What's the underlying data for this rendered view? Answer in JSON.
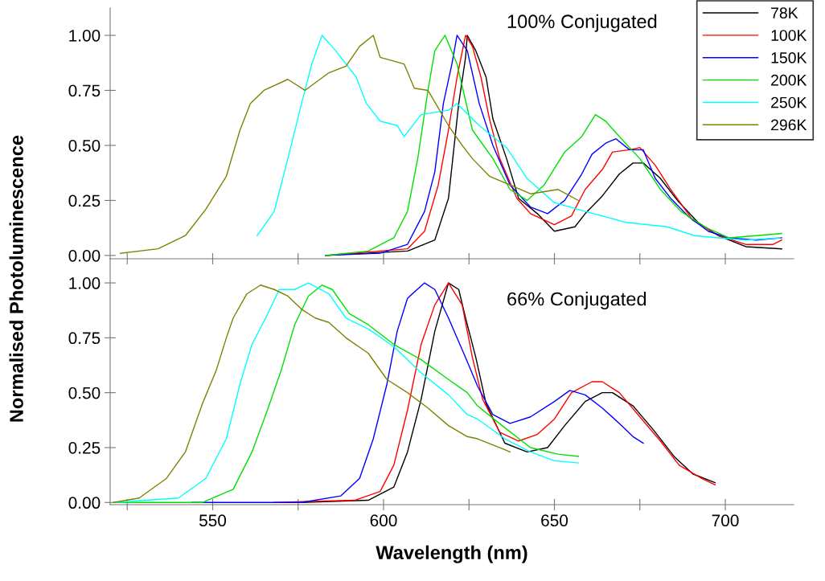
{
  "chart_data": [
    {
      "type": "line",
      "ylabel": "Normalised Photoluminescence",
      "annotations": [
        "100% Conjugated"
      ],
      "xlim": [
        520,
        720
      ],
      "ylim": [
        -0.015,
        1.124
      ],
      "xticks": [
        {
          "value": 525,
          "label": null
        },
        {
          "value": 550,
          "label": null
        },
        {
          "value": 575,
          "label": null
        },
        {
          "value": 600,
          "label": null
        },
        {
          "value": 625,
          "label": null
        },
        {
          "value": 650,
          "label": null
        },
        {
          "value": 675,
          "label": null
        },
        {
          "value": 700,
          "label": null
        }
      ],
      "yticks": [
        {
          "value": 0,
          "label": "0.00"
        },
        {
          "value": 0.25,
          "label": "0.25"
        },
        {
          "value": 0.5,
          "label": "0.50"
        },
        {
          "value": 0.75,
          "label": "0.75"
        },
        {
          "value": 1,
          "label": "1.00"
        }
      ],
      "tick_labels": "y",
      "legend": "top right",
      "grid": false,
      "marker": "none",
      "line_style": "solid",
      "series": [
        {
          "name": "78K",
          "color": "#000000",
          "x": [
            583,
            607,
            615,
            619,
            622,
            624,
            624.5,
            627,
            630,
            632,
            636,
            639.5,
            645,
            650,
            656,
            659,
            664,
            669,
            673,
            676,
            681,
            686,
            692,
            698,
            706,
            716.5
          ],
          "values": [
            0,
            0.02,
            0.07,
            0.26,
            0.69,
            0.9,
            1.0,
            0.93,
            0.81,
            0.62,
            0.44,
            0.26,
            0.19,
            0.11,
            0.13,
            0.19,
            0.27,
            0.37,
            0.42,
            0.42,
            0.35,
            0.25,
            0.15,
            0.09,
            0.04,
            0.03
          ]
        },
        {
          "name": "100K",
          "color": "#ff0000",
          "x": [
            583,
            607,
            612,
            616,
            619,
            621.5,
            624,
            626,
            628.5,
            631,
            634,
            639,
            643,
            650,
            655,
            659,
            664,
            667,
            672,
            675,
            679.5,
            684,
            690.5,
            698,
            706,
            714,
            716.5
          ],
          "values": [
            0,
            0.03,
            0.11,
            0.32,
            0.57,
            0.81,
            1.0,
            0.95,
            0.81,
            0.62,
            0.44,
            0.26,
            0.19,
            0.14,
            0.18,
            0.3,
            0.39,
            0.47,
            0.48,
            0.49,
            0.41,
            0.3,
            0.16,
            0.09,
            0.05,
            0.05,
            0.07
          ]
        },
        {
          "name": "150K",
          "color": "#0000ff",
          "x": [
            583,
            599,
            607,
            612,
            615,
            617.5,
            620,
            621.5,
            624.5,
            628,
            632,
            637,
            643,
            648,
            653,
            658,
            661,
            665,
            668,
            672,
            676,
            679.5,
            684,
            689,
            695,
            701,
            709,
            716.5
          ],
          "values": [
            0,
            0.01,
            0.05,
            0.2,
            0.38,
            0.69,
            0.87,
            1.0,
            0.93,
            0.69,
            0.5,
            0.32,
            0.22,
            0.19,
            0.25,
            0.37,
            0.46,
            0.51,
            0.53,
            0.48,
            0.48,
            0.35,
            0.26,
            0.18,
            0.11,
            0.08,
            0.07,
            0.08
          ]
        },
        {
          "name": "200K",
          "color": "#00e000",
          "x": [
            583,
            595.5,
            603,
            607,
            610,
            613,
            615,
            618,
            621.5,
            626,
            632,
            637,
            642,
            647,
            653,
            658,
            662,
            665,
            669,
            675,
            681,
            687,
            694,
            701,
            709,
            716.5
          ],
          "values": [
            0,
            0.02,
            0.08,
            0.2,
            0.44,
            0.75,
            0.93,
            1.0,
            0.87,
            0.57,
            0.44,
            0.3,
            0.25,
            0.32,
            0.47,
            0.54,
            0.64,
            0.61,
            0.54,
            0.44,
            0.3,
            0.2,
            0.13,
            0.08,
            0.09,
            0.1
          ]
        },
        {
          "name": "250K",
          "color": "#00ffff",
          "x": [
            563,
            568,
            572,
            576,
            579,
            582,
            586,
            592,
            595,
            599,
            604,
            606,
            611,
            619,
            621.5,
            628,
            636,
            642,
            650,
            659,
            671,
            683,
            691,
            698,
            706,
            716
          ],
          "values": [
            0.09,
            0.2,
            0.44,
            0.69,
            0.87,
            1.0,
            0.93,
            0.81,
            0.69,
            0.61,
            0.59,
            0.54,
            0.64,
            0.66,
            0.69,
            0.59,
            0.49,
            0.35,
            0.24,
            0.2,
            0.15,
            0.13,
            0.09,
            0.08,
            0.07,
            0.08
          ]
        },
        {
          "name": "296K",
          "color": "#808000",
          "x": [
            523,
            534,
            542,
            548,
            554,
            558,
            561,
            565,
            572,
            577,
            584,
            589,
            593,
            597,
            599,
            606,
            609,
            613,
            619,
            623,
            626,
            631,
            637,
            643,
            651,
            657
          ],
          "values": [
            0.01,
            0.03,
            0.09,
            0.21,
            0.36,
            0.57,
            0.69,
            0.75,
            0.8,
            0.75,
            0.83,
            0.86,
            0.95,
            1.0,
            0.9,
            0.87,
            0.76,
            0.75,
            0.59,
            0.5,
            0.44,
            0.36,
            0.32,
            0.28,
            0.3,
            0.25
          ]
        }
      ]
    },
    {
      "type": "line",
      "xlabel": "Wavelength (nm)",
      "annotations": [
        "66% Conjugated"
      ],
      "xlim": [
        520,
        720
      ],
      "ylim": [
        -0.01,
        1.11
      ],
      "xticks": [
        {
          "value": 525,
          "label": null
        },
        550,
        {
          "value": 575,
          "label": null
        },
        600,
        {
          "value": 625,
          "label": null
        },
        650,
        {
          "value": 675,
          "label": null
        },
        700
      ],
      "yticks": [
        {
          "value": 0,
          "label": "0.00"
        },
        {
          "value": 0.25,
          "label": "0.25"
        },
        {
          "value": 0.5,
          "label": "0.50"
        },
        {
          "value": 0.75,
          "label": "0.75"
        },
        {
          "value": 1,
          "label": "1.00"
        }
      ],
      "grid": false,
      "marker": "none",
      "line_style": "solid",
      "series": [
        {
          "color": "#000000",
          "x": [
            576,
            595.5,
            603,
            607,
            611,
            615,
            619,
            622,
            624,
            627,
            630,
            635.5,
            642,
            648,
            653,
            659,
            664,
            667,
            673,
            679,
            685,
            690.5,
            697
          ],
          "values": [
            0,
            0.01,
            0.07,
            0.23,
            0.47,
            0.78,
            1.0,
            0.97,
            0.84,
            0.66,
            0.45,
            0.27,
            0.23,
            0.25,
            0.35,
            0.46,
            0.5,
            0.5,
            0.44,
            0.33,
            0.21,
            0.13,
            0.09
          ]
        },
        {
          "color": "#ff0000",
          "x": [
            568,
            591.5,
            599,
            603,
            607,
            611,
            615,
            619,
            623,
            626,
            629,
            634,
            639.5,
            645,
            650,
            655,
            661,
            664,
            669,
            675,
            681,
            686.5,
            693,
            697
          ],
          "values": [
            0,
            0.01,
            0.05,
            0.17,
            0.42,
            0.72,
            0.9,
            1.0,
            0.9,
            0.66,
            0.47,
            0.32,
            0.28,
            0.31,
            0.38,
            0.5,
            0.55,
            0.55,
            0.5,
            0.39,
            0.28,
            0.17,
            0.11,
            0.08
          ]
        },
        {
          "color": "#0000ff",
          "x": [
            544,
            576,
            587.5,
            593,
            597,
            601,
            604,
            607,
            612,
            615,
            619,
            624,
            627.5,
            632,
            637,
            643,
            650,
            654.5,
            659,
            664,
            669,
            673,
            676
          ],
          "values": [
            0,
            0,
            0.03,
            0.11,
            0.29,
            0.54,
            0.78,
            0.93,
            1.0,
            0.97,
            0.84,
            0.66,
            0.53,
            0.4,
            0.36,
            0.39,
            0.46,
            0.51,
            0.49,
            0.43,
            0.36,
            0.3,
            0.27
          ]
        },
        {
          "color": "#00e000",
          "x": [
            521,
            547,
            556,
            561.5,
            566,
            570,
            574,
            578,
            582,
            585,
            590,
            595.5,
            603,
            611,
            619,
            624.5,
            627.5,
            635.5,
            643,
            651,
            657
          ],
          "values": [
            0,
            0,
            0.06,
            0.23,
            0.42,
            0.6,
            0.81,
            0.94,
            0.99,
            0.97,
            0.86,
            0.81,
            0.72,
            0.65,
            0.56,
            0.5,
            0.44,
            0.34,
            0.25,
            0.22,
            0.21
          ]
        },
        {
          "color": "#00ffff",
          "x": [
            521,
            540,
            548,
            554,
            558,
            561.5,
            565.5,
            569.5,
            574,
            578,
            584,
            589,
            595.5,
            603,
            611,
            619,
            624.5,
            627.5,
            635.5,
            643,
            650,
            657
          ],
          "values": [
            0,
            0.02,
            0.11,
            0.29,
            0.54,
            0.72,
            0.84,
            0.97,
            0.97,
            1.0,
            0.95,
            0.84,
            0.79,
            0.71,
            0.59,
            0.49,
            0.4,
            0.38,
            0.29,
            0.23,
            0.19,
            0.18
          ]
        },
        {
          "color": "#808000",
          "x": [
            521,
            528.5,
            536.5,
            542,
            547,
            551,
            554,
            556,
            560,
            564,
            568,
            572,
            576,
            580,
            584,
            589,
            595.5,
            601,
            607,
            613,
            619,
            624.5,
            627.5,
            635.5,
            637
          ],
          "values": [
            0,
            0.02,
            0.11,
            0.23,
            0.45,
            0.6,
            0.75,
            0.84,
            0.95,
            0.99,
            0.97,
            0.94,
            0.88,
            0.84,
            0.82,
            0.75,
            0.68,
            0.56,
            0.5,
            0.43,
            0.35,
            0.3,
            0.29,
            0.24,
            0.23
          ]
        }
      ]
    }
  ]
}
